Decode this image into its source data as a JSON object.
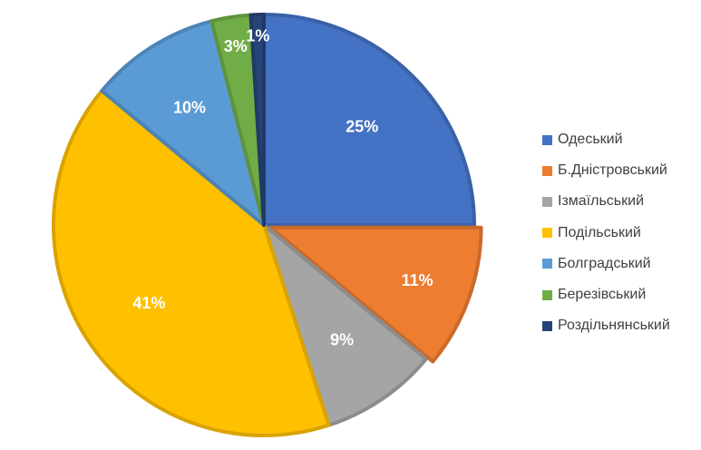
{
  "chart_data": {
    "type": "pie",
    "title": "",
    "categories": [
      "Одеський",
      "Б.Дністровський",
      "Ізмаїльський",
      "Подільський",
      "Болградський",
      "Березівський",
      "Роздільнянський"
    ],
    "values": [
      25,
      11,
      9,
      41,
      10,
      3,
      1
    ],
    "value_labels": [
      "25%",
      "11%",
      "9%",
      "41%",
      "10%",
      "3%",
      "1%"
    ],
    "colors": [
      "#4472C4",
      "#ED7D31",
      "#A5A5A5",
      "#FFC000",
      "#5B9BD5",
      "#70AD47",
      "#264478"
    ],
    "legend_position": "right",
    "start_angle": "12 o'clock",
    "direction": "clockwise"
  }
}
